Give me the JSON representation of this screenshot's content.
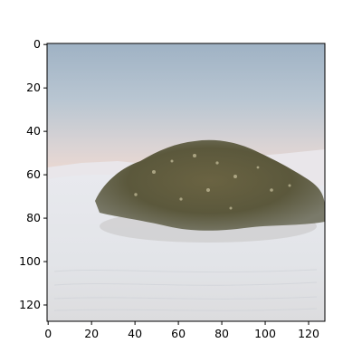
{
  "figure": {
    "x_ticks": [
      "0",
      "20",
      "40",
      "60",
      "80",
      "100",
      "120"
    ],
    "y_ticks": [
      "0",
      "20",
      "40",
      "60",
      "80",
      "100",
      "120"
    ],
    "x_range": [
      0,
      127
    ],
    "y_range": [
      0,
      127
    ],
    "image_description_colors": {
      "sky_top": "#9fb4c8",
      "sky_bottom": "#e8dcd6",
      "sand": "#e4e6ea",
      "bush": "#5e5a3c"
    }
  }
}
